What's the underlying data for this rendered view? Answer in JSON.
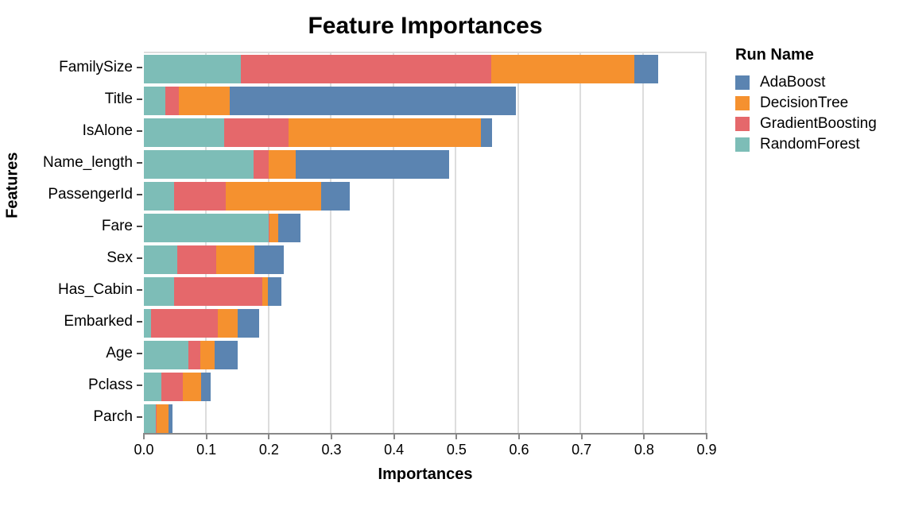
{
  "chart_data": {
    "type": "bar",
    "orientation": "horizontal",
    "stacked": true,
    "title": "Feature Importances",
    "xlabel": "Importances",
    "ylabel": "Features",
    "legend_title": "Run Name",
    "legend_position": "right",
    "grid": true,
    "xlim": [
      0,
      0.9
    ],
    "x_ticks": [
      0.0,
      0.1,
      0.2,
      0.3,
      0.4,
      0.5,
      0.6,
      0.7,
      0.8,
      0.9
    ],
    "x_tick_labels": [
      "0.0",
      "0.1",
      "0.2",
      "0.3",
      "0.4",
      "0.5",
      "0.6",
      "0.7",
      "0.8",
      "0.9"
    ],
    "categories": [
      "FamilySize",
      "Title",
      "IsAlone",
      "Name_length",
      "PassengerId",
      "Fare",
      "Sex",
      "Has_Cabin",
      "Embarked",
      "Age",
      "Pclass",
      "Parch"
    ],
    "stack_order": [
      "RandomForest",
      "GradientBoosting",
      "DecisionTree",
      "AdaBoost"
    ],
    "series": [
      {
        "name": "AdaBoost",
        "color": "#5B84B1",
        "values": [
          0.039,
          0.459,
          0.018,
          0.246,
          0.046,
          0.035,
          0.047,
          0.021,
          0.034,
          0.037,
          0.015,
          0.007
        ]
      },
      {
        "name": "DecisionTree",
        "color": "#F5912F",
        "values": [
          0.229,
          0.082,
          0.309,
          0.044,
          0.153,
          0.014,
          0.061,
          0.009,
          0.032,
          0.022,
          0.03,
          0.018
        ]
      },
      {
        "name": "GradientBoosting",
        "color": "#E5686B",
        "values": [
          0.401,
          0.021,
          0.103,
          0.024,
          0.082,
          0.002,
          0.063,
          0.141,
          0.108,
          0.019,
          0.034,
          0.002
        ]
      },
      {
        "name": "RandomForest",
        "color": "#7DBDB7",
        "values": [
          0.156,
          0.035,
          0.129,
          0.176,
          0.049,
          0.2,
          0.053,
          0.049,
          0.011,
          0.072,
          0.028,
          0.019
        ]
      }
    ],
    "style_colors": {
      "gridline": "#dddddd",
      "plot_border": "#dddddd",
      "axis_domain": "#888888",
      "x_tick": "#888888",
      "y_tick": "#444444",
      "text": "#000000",
      "background": "#ffffff"
    }
  }
}
